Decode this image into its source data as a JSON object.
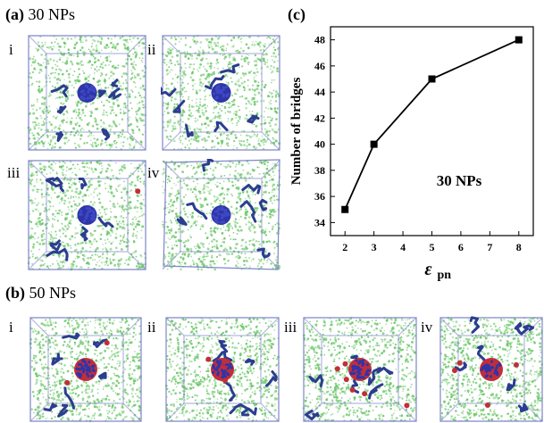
{
  "panel_a": {
    "label": "(a)",
    "title": "30 NPs",
    "snapshots": [
      "i",
      "ii",
      "iii",
      "iv"
    ]
  },
  "panel_b": {
    "label": "(b)",
    "title": "50 NPs",
    "snapshots": [
      "i",
      "ii",
      "iii",
      "iv"
    ]
  },
  "colors": {
    "polymer": "#6cc76a",
    "bridge_chain": "#2b3d8f",
    "nanoparticle_core": "#2e35a8",
    "nanoparticle_red": "#c32d3a",
    "box_edge": "#7f86c9"
  },
  "chart_data": {
    "type": "line",
    "panel_label": "(c)",
    "annotation": "30 NPs",
    "xlabel": "ε",
    "xlabel_sub": "pn",
    "ylabel": "Number of bridges",
    "x": [
      2,
      3,
      5,
      8
    ],
    "y": [
      35,
      40,
      45,
      48
    ],
    "xlim": [
      1.5,
      8.5
    ],
    "ylim": [
      33,
      49
    ],
    "xticks": [
      2,
      3,
      4,
      5,
      6,
      7,
      8
    ],
    "yticks": [
      34,
      36,
      38,
      40,
      42,
      44,
      46,
      48
    ],
    "marker": "square",
    "grid": false
  }
}
